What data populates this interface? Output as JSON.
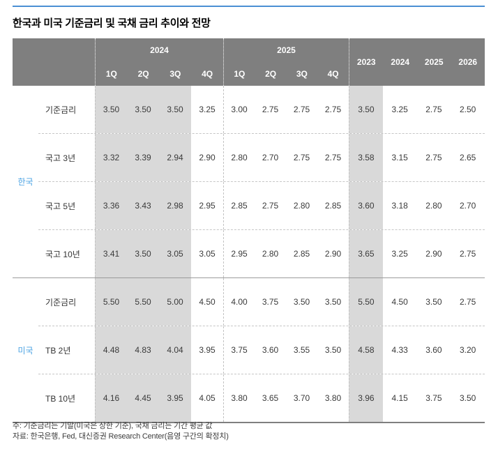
{
  "title": "한국과 미국 기준금리 및 국채 금리 추이와 전망",
  "colors": {
    "top_rule_blue": "#4a8fd4",
    "header_bg": "#7f7f7f",
    "header_text": "#ffffff",
    "shaded_column_bg": "#d9d9d9",
    "country_label_blue": "#4ba3e3"
  },
  "header": {
    "groups": [
      {
        "label": "2024",
        "quarters": [
          "1Q",
          "2Q",
          "3Q",
          "4Q"
        ]
      },
      {
        "label": "2025",
        "quarters": [
          "1Q",
          "2Q",
          "3Q",
          "4Q"
        ]
      }
    ],
    "annual": [
      "2023",
      "2024",
      "2025",
      "2026"
    ]
  },
  "sections": [
    {
      "country": "한국",
      "rows": [
        {
          "indicator": "기준금리",
          "q2024": [
            "3.50",
            "3.50",
            "3.50",
            "3.25"
          ],
          "q2025": [
            "3.00",
            "2.75",
            "2.75",
            "2.75"
          ],
          "annual": [
            "3.50",
            "3.25",
            "2.75",
            "2.50"
          ]
        },
        {
          "indicator": "국고 3년",
          "q2024": [
            "3.32",
            "3.39",
            "2.94",
            "2.90"
          ],
          "q2025": [
            "2.80",
            "2.70",
            "2.75",
            "2.75"
          ],
          "annual": [
            "3.58",
            "3.15",
            "2.75",
            "2.65"
          ]
        },
        {
          "indicator": "국고 5년",
          "q2024": [
            "3.36",
            "3.43",
            "2.98",
            "2.95"
          ],
          "q2025": [
            "2.85",
            "2.75",
            "2.80",
            "2.85"
          ],
          "annual": [
            "3.60",
            "3.18",
            "2.80",
            "2.70"
          ]
        },
        {
          "indicator": "국고 10년",
          "q2024": [
            "3.41",
            "3.50",
            "3.05",
            "3.05"
          ],
          "q2025": [
            "2.95",
            "2.80",
            "2.85",
            "2.90"
          ],
          "annual": [
            "3.65",
            "3.25",
            "2.90",
            "2.75"
          ]
        }
      ]
    },
    {
      "country": "미국",
      "rows": [
        {
          "indicator": "기준금리",
          "q2024": [
            "5.50",
            "5.50",
            "5.00",
            "4.50"
          ],
          "q2025": [
            "4.00",
            "3.75",
            "3.50",
            "3.50"
          ],
          "annual": [
            "5.50",
            "4.50",
            "3.50",
            "2.75"
          ]
        },
        {
          "indicator": "TB 2년",
          "q2024": [
            "4.48",
            "4.83",
            "4.04",
            "3.95"
          ],
          "q2025": [
            "3.75",
            "3.60",
            "3.55",
            "3.50"
          ],
          "annual": [
            "4.58",
            "4.33",
            "3.60",
            "3.20"
          ]
        },
        {
          "indicator": "TB 10년",
          "q2024": [
            "4.16",
            "4.45",
            "3.95",
            "4.05"
          ],
          "q2025": [
            "3.80",
            "3.65",
            "3.70",
            "3.80"
          ],
          "annual": [
            "3.96",
            "4.15",
            "3.75",
            "3.50"
          ]
        }
      ]
    }
  ],
  "notes": [
    "주: 기준금리는 기말(미국은 상한 기준), 국채 금리는 기간 평균 값",
    "자료:  한국은행, Fed, 대신증권 Research Center(음영 구간의 확정치)"
  ]
}
